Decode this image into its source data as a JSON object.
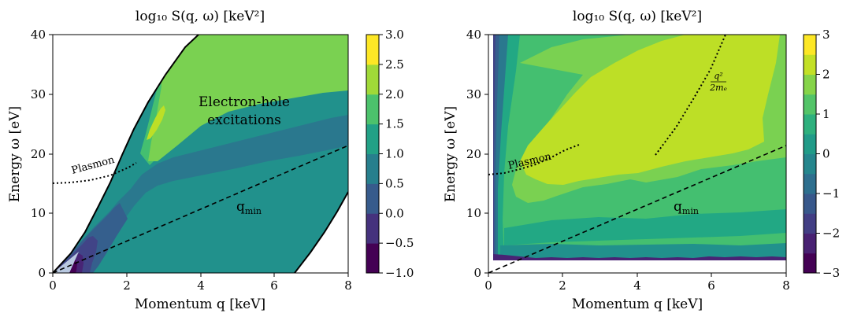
{
  "chart_data": [
    {
      "type": "heatmap",
      "title": "log₁₀ S(q, ω) [keV²]",
      "xlabel": "Momentum q [keV]",
      "ylabel": "Energy ω [eV]",
      "xlim": [
        0,
        8
      ],
      "ylim": [
        0,
        40
      ],
      "xticks": [
        "0",
        "2",
        "4",
        "6",
        "8"
      ],
      "yticks": [
        "0",
        "10",
        "20",
        "30",
        "40"
      ],
      "colorbar": {
        "range": [
          -1.0,
          3.0
        ],
        "ticks": [
          "-1.0",
          "-0.5",
          "0.0",
          "0.5",
          "1.0",
          "1.5",
          "2.0",
          "2.5",
          "3.0"
        ],
        "levels": [
          -1.0,
          -0.5,
          0.0,
          0.5,
          1.0,
          1.5,
          2.0,
          2.5,
          3.0
        ]
      },
      "annotations": {
        "region": [
          "Electron-hole",
          "excitations"
        ],
        "plasmon": "Plasmon",
        "qmin": "q_min"
      },
      "curves": {
        "qmin_slope_eV_per_keV": 2.66,
        "plasmon_points": [
          [
            0,
            15
          ],
          [
            0.5,
            15.2
          ],
          [
            1,
            15.8
          ],
          [
            1.5,
            16.9
          ],
          [
            2,
            18.3
          ],
          [
            2.2,
            19
          ]
        ],
        "upper_boundary_points": [
          [
            0,
            0
          ],
          [
            1,
            6.5
          ],
          [
            2,
            16.5
          ],
          [
            3,
            28.5
          ],
          [
            3.6,
            37.5
          ],
          [
            3.78,
            40
          ]
        ],
        "lower_boundary_points": [
          [
            6.7,
            0
          ],
          [
            7.2,
            3.5
          ],
          [
            7.6,
            6.8
          ],
          [
            8,
            10.3
          ]
        ]
      },
      "grid": false
    },
    {
      "type": "heatmap",
      "title": "log₁₀ S(q, ω) [keV²]",
      "xlabel": "Momentum q [keV]",
      "ylabel": "Energy ω [eV]",
      "xlim": [
        0,
        8
      ],
      "ylim": [
        0,
        40
      ],
      "xticks": [
        "0",
        "2",
        "4",
        "6",
        "8"
      ],
      "yticks": [
        "0",
        "10",
        "20",
        "30",
        "40"
      ],
      "colorbar": {
        "range": [
          -3,
          3
        ],
        "ticks": [
          "-3",
          "-2",
          "-1",
          "0",
          "1",
          "2",
          "3"
        ],
        "levels": [
          -3,
          -2.5,
          -2,
          -1.5,
          -1,
          -0.5,
          0,
          0.5,
          1,
          1.5,
          2,
          2.5,
          3
        ]
      },
      "annotations": {
        "plasmon": "Plasmon",
        "qmin": "q_min",
        "free_num": "q²",
        "free_den": "2mₑ"
      },
      "curves": {
        "qmin_slope_eV_per_keV": 2.66,
        "plasmon_points": [
          [
            0,
            16.5
          ],
          [
            0.5,
            16.8
          ],
          [
            1,
            17.4
          ],
          [
            1.5,
            18.3
          ],
          [
            2,
            19.6
          ],
          [
            2.5,
            21.2
          ]
        ],
        "free_electron_points": [
          [
            4.5,
            19.8
          ],
          [
            5,
            24.5
          ],
          [
            5.5,
            29.6
          ],
          [
            6,
            35
          ],
          [
            6.4,
            40
          ]
        ]
      },
      "grid": false
    }
  ],
  "colors": {
    "viridis": [
      "#440154",
      "#482475",
      "#414487",
      "#355f8d",
      "#2a788e",
      "#21918c",
      "#22a884",
      "#44bf70",
      "#7ad151",
      "#bddf26",
      "#fde725"
    ],
    "inaccessible": "#b8c8e0",
    "curve": "#000000"
  }
}
